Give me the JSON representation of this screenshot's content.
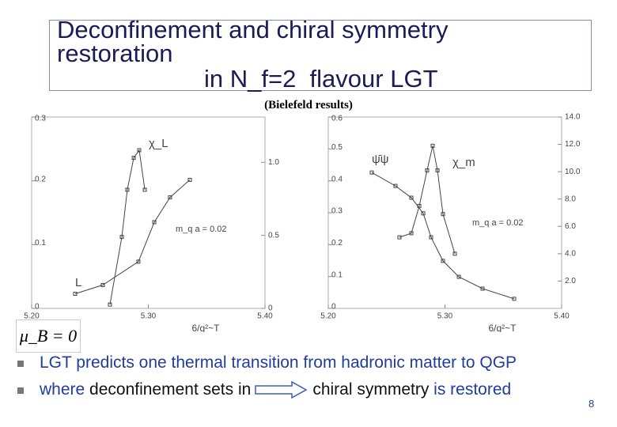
{
  "title": {
    "lines": [
      "Deconfinement and chiral symmetry",
      "restoration",
      "in N_f=2  flavour LGT"
    ]
  },
  "subtitle": "(Bielefeld results)",
  "chart_data": [
    {
      "type": "line",
      "xlim": [
        5.2,
        5.4
      ],
      "xticks": [
        {
          "value": 5.2,
          "label": "5.20"
        },
        {
          "value": 5.3,
          "label": "5.30"
        },
        {
          "value": 5.4,
          "label": "5.40"
        }
      ],
      "ylim": [
        0,
        0.3
      ],
      "yticks": [
        0,
        0.1,
        0.2,
        0.3
      ],
      "y2lim": [
        0,
        1.31
      ],
      "y2ticks": [
        0,
        0.5,
        {
          "value": 1,
          "label": "1.0"
        }
      ],
      "x_label": "6/g²~T",
      "annotations": [
        "χ_L",
        "L",
        "m_q a  =  0.02"
      ],
      "series": [
        {
          "color": "#444444",
          "axis": "y",
          "x": [
            5.2671,
            5.2773,
            5.282,
            5.2875,
            5.2922,
            5.297
          ],
          "values": [
            0.006,
            0.112,
            0.186,
            0.236,
            0.248,
            0.186
          ]
        },
        {
          "color": "#444444",
          "axis": "y2",
          "x": [
            5.2373,
            5.261,
            5.2915,
            5.3051,
            5.3186,
            5.3356
          ],
          "values": [
            0.1,
            0.16,
            0.32,
            0.59,
            0.76,
            0.88
          ]
        }
      ]
    },
    {
      "type": "line",
      "xlim": [
        5.2,
        5.4
      ],
      "xticks": [
        {
          "value": 5.2,
          "label": "5.20"
        },
        {
          "value": 5.3,
          "label": "5.30"
        },
        {
          "value": 5.4,
          "label": "5.40"
        }
      ],
      "ylim": [
        0,
        0.6
      ],
      "yticks": [
        0,
        0.1,
        0.2,
        0.3,
        0.4,
        0.5,
        0.6
      ],
      "y2lim": [
        0,
        14
      ],
      "y2ticks": [
        {
          "value": 2,
          "label": "2.0"
        },
        {
          "value": 4,
          "label": "4.0"
        },
        {
          "value": 6,
          "label": "6.0"
        },
        {
          "value": 8,
          "label": "8.0"
        },
        {
          "value": 10,
          "label": "10.0"
        },
        {
          "value": 12,
          "label": "12.0"
        },
        {
          "value": 14,
          "label": "14.0"
        }
      ],
      "x_label": "6/g²~T",
      "annotations": [
        "ψ̄ψ",
        "χ_m",
        "m_q a  =  0.02"
      ],
      "series": [
        {
          "color": "#444444",
          "axis": "y",
          "x": [
            5.2373,
            5.2576,
            5.2712,
            5.2814,
            5.2881,
            5.2983,
            5.3119,
            5.3322,
            5.3593
          ],
          "values": [
            0.426,
            0.384,
            0.347,
            0.298,
            0.223,
            0.149,
            0.099,
            0.062,
            0.03
          ]
        },
        {
          "color": "#444444",
          "axis": "y2",
          "x": [
            5.261,
            5.2712,
            5.278,
            5.2847,
            5.2895,
            5.2936,
            5.2983,
            5.3085
          ],
          "values": [
            5.2,
            5.5,
            7.5,
            10.1,
            11.9,
            10.1,
            6.9,
            4.0
          ]
        }
      ]
    }
  ],
  "formula": "μ_B = 0",
  "bullets": [
    [
      "LGT predicts one thermal transition from hadronic matter to QGP"
    ],
    [
      "where ",
      "deconfinement sets in",
      "chiral symmetry",
      " is restored"
    ]
  ],
  "page_number": "8"
}
